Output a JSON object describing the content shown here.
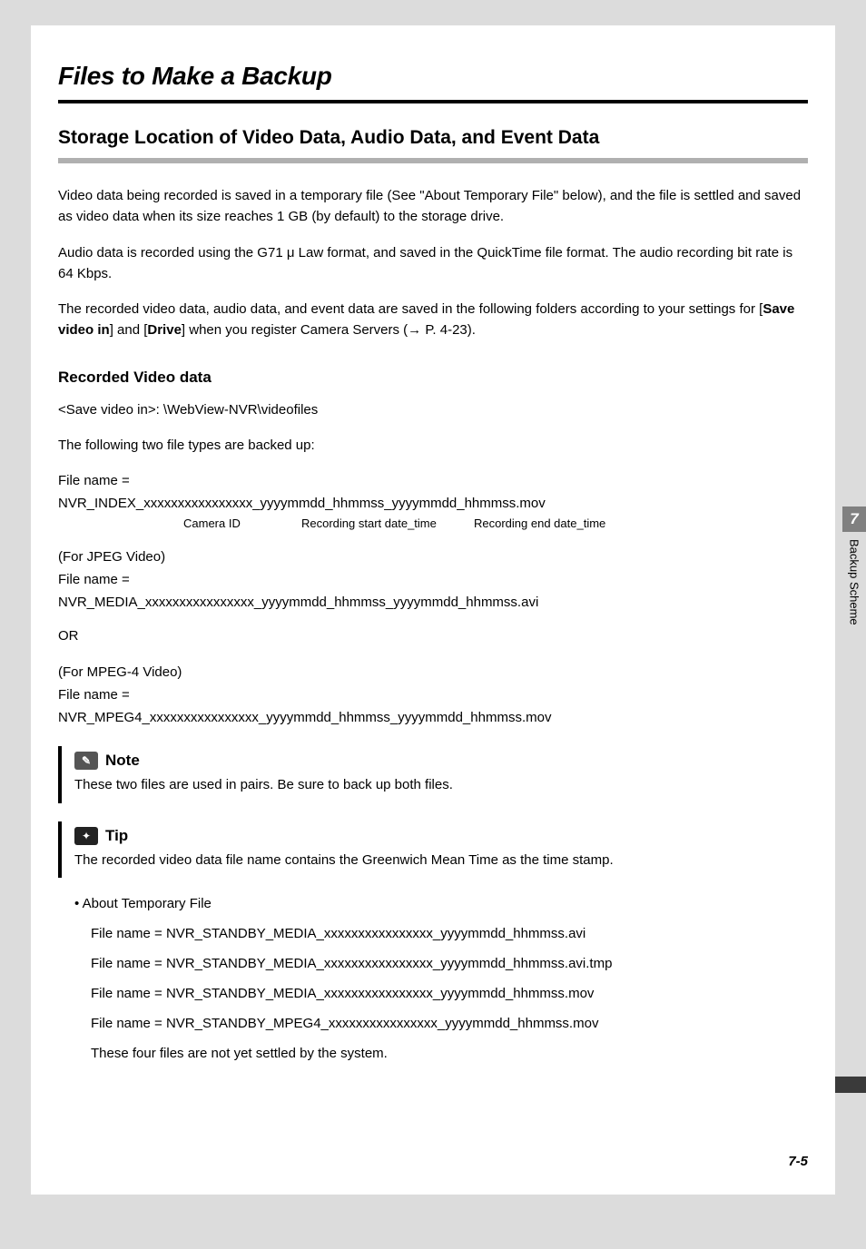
{
  "title": "Files to Make a Backup",
  "section": "Storage Location of Video Data, Audio Data, and Event Data",
  "p1": "Video data being recorded is saved in a temporary file (See \"About Temporary File\" below), and the file is settled and saved as video data when its size reaches 1 GB (by default) to the storage drive.",
  "p2": "Audio data is recorded using the G71 μ Law format, and saved in the QuickTime file format. The audio recording bit rate is 64 Kbps.",
  "p3_a": "The recorded video data, audio data, and event data are saved in the following folders according to your settings for [",
  "p3_b": "Save video in",
  "p3_c": "] and [",
  "p3_d": "Drive",
  "p3_e": "] when you register Camera Servers (→ P. 4-23).",
  "h3": "Recorded Video data",
  "path": "<Save video in>: \\WebView-NVR\\videofiles",
  "types_intro": "The following two file types are backed up:",
  "fname_eq": "File name =",
  "idx_line": "NVR_INDEX_xxxxxxxxxxxxxxxx_yyyymmdd_hhmmss_yyyymmdd_hhmmss.mov",
  "seg1": "Camera ID",
  "seg2": "Recording start date_time",
  "seg3": "Recording end date_time",
  "jpeg_head": "(For JPEG Video)",
  "jpeg_line": "NVR_MEDIA_xxxxxxxxxxxxxxxx_yyyymmdd_hhmmss_yyyymmdd_hhmmss.avi",
  "or": "OR",
  "mpeg_head": "(For MPEG-4 Video)",
  "mpeg_line": "NVR_MPEG4_xxxxxxxxxxxxxxxx_yyyymmdd_hhmmss_yyyymmdd_hhmmss.mov",
  "note_title": "Note",
  "note_body": "These two files are used in pairs. Be sure to back up both files.",
  "tip_title": "Tip",
  "tip_body": "The recorded video data file name contains the Greenwich Mean Time as the time stamp.",
  "about_tmp": "About Temporary File",
  "tmp1": "File name = NVR_STANDBY_MEDIA_xxxxxxxxxxxxxxxx_yyyymmdd_hhmmss.avi",
  "tmp2": "File name = NVR_STANDBY_MEDIA_xxxxxxxxxxxxxxxx_yyyymmdd_hhmmss.avi.tmp",
  "tmp3": "File name = NVR_STANDBY_MEDIA_xxxxxxxxxxxxxxxx_yyyymmdd_hhmmss.mov",
  "tmp4": "File name = NVR_STANDBY_MPEG4_xxxxxxxxxxxxxxxx_yyyymmdd_hhmmss.mov",
  "tmp_note": "These four files are not yet settled by the system.",
  "tab_num": "7",
  "tab_label": "Backup Scheme",
  "page_num": "7-5"
}
